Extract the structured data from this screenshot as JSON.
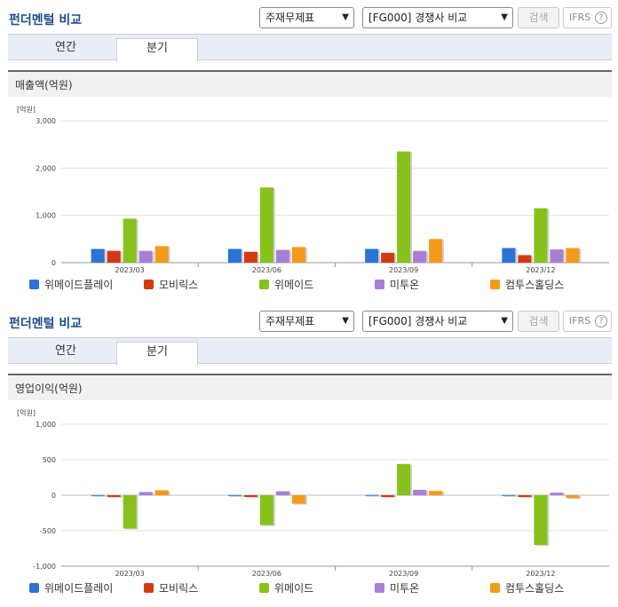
{
  "colors": {
    "series": [
      "#2b73d6",
      "#d33a14",
      "#86c21a",
      "#a77fd6",
      "#f49a1a"
    ]
  },
  "panels": [
    {
      "title": "펀더멘털 비교",
      "select1": "주재무제표",
      "select2": "[FG000] 경쟁사 비교",
      "search_label": "검색",
      "ifrs_label": "IFRS",
      "help_glyph": "?",
      "tabs": [
        "연간",
        "분기"
      ],
      "active_tab": 1,
      "section_title": "매출액(억원)",
      "unit_label": "[억원]",
      "legend": [
        "위메이드플레이",
        "모비릭스",
        "위메이드",
        "미투온",
        "컴투스홀딩스"
      ]
    },
    {
      "title": "펀더멘털 비교",
      "select1": "주재무제표",
      "select2": "[FG000] 경쟁사 비교",
      "search_label": "검색",
      "ifrs_label": "IFRS",
      "help_glyph": "?",
      "tabs": [
        "연간",
        "분기"
      ],
      "active_tab": 1,
      "section_title": "영업이익(억원)",
      "unit_label": "[억원]",
      "legend": [
        "위메이드플레이",
        "모비릭스",
        "위메이드",
        "미투온",
        "컴투스홀딩스"
      ]
    }
  ],
  "chart_data": [
    {
      "type": "bar",
      "ylabel": "[억원]",
      "ylim": [
        0,
        3000
      ],
      "yticks": [
        "0",
        "1,000",
        "2,000",
        "3,000"
      ],
      "ytick_values": [
        0,
        1000,
        2000,
        3000
      ],
      "categories": [
        "2023/03",
        "2023/06",
        "2023/09",
        "2023/12"
      ],
      "grid": true,
      "legend_position": "bottom",
      "series": [
        {
          "name": "위메이드플레이",
          "values": [
            290,
            290,
            290,
            310
          ]
        },
        {
          "name": "모비릭스",
          "values": [
            250,
            230,
            210,
            160
          ]
        },
        {
          "name": "위메이드",
          "values": [
            930,
            1590,
            2350,
            1150
          ]
        },
        {
          "name": "미투온",
          "values": [
            250,
            270,
            250,
            280
          ]
        },
        {
          "name": "컴투스홀딩스",
          "values": [
            350,
            330,
            500,
            310
          ]
        }
      ]
    },
    {
      "type": "bar",
      "ylabel": "[억원]",
      "ylim": [
        -1000,
        1000
      ],
      "yticks": [
        "-1,000",
        "-500",
        "0",
        "500",
        "1,000"
      ],
      "ytick_values": [
        -1000,
        -500,
        0,
        500,
        1000
      ],
      "categories": [
        "2023/03",
        "2023/06",
        "2023/09",
        "2023/12"
      ],
      "grid": true,
      "legend_position": "bottom",
      "series": [
        {
          "name": "위메이드플레이",
          "values": [
            2,
            2,
            3,
            2
          ]
        },
        {
          "name": "모비릭스",
          "values": [
            -25,
            -25,
            -25,
            -25
          ]
        },
        {
          "name": "위메이드",
          "values": [
            -470,
            -420,
            440,
            -700
          ]
        },
        {
          "name": "미투온",
          "values": [
            45,
            55,
            75,
            35
          ]
        },
        {
          "name": "컴투스홀딩스",
          "values": [
            70,
            -120,
            60,
            -40
          ]
        }
      ]
    }
  ]
}
